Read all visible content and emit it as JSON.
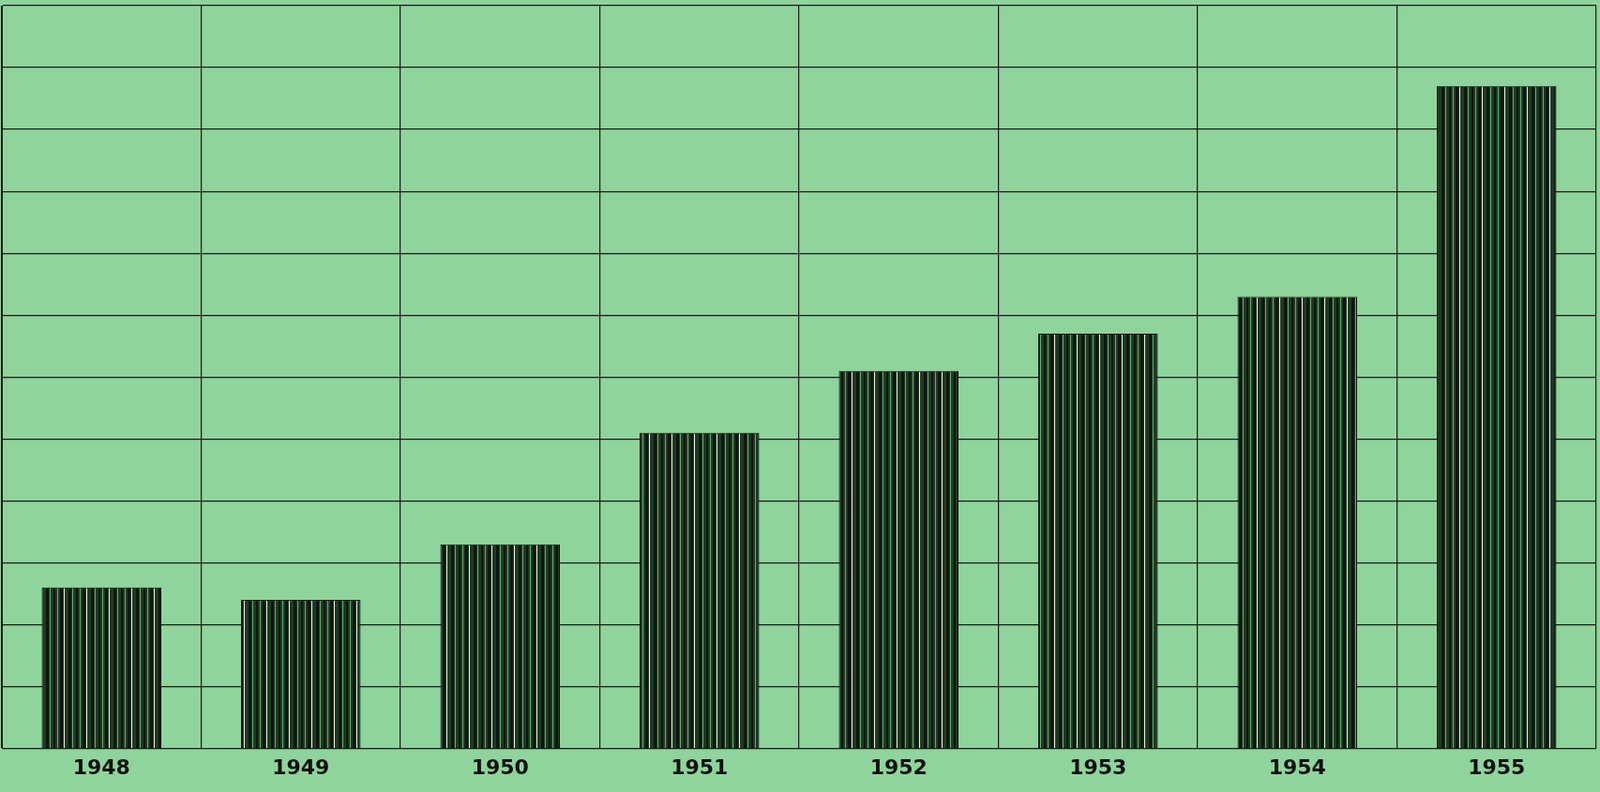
{
  "chart_data": {
    "type": "bar",
    "categories": [
      "1948",
      "1949",
      "1950",
      "1951",
      "1952",
      "1953",
      "1954",
      "1955"
    ],
    "values": [
      2.6,
      2.4,
      3.3,
      5.1,
      6.1,
      6.7,
      7.3,
      10.7
    ],
    "color": "#1e3a22",
    "ylim": [
      0,
      12
    ],
    "yticks": [
      0,
      1,
      2,
      3,
      4,
      5,
      6,
      7,
      8,
      9,
      10,
      11,
      12
    ],
    "grid": true,
    "tick_labels": "x"
  }
}
